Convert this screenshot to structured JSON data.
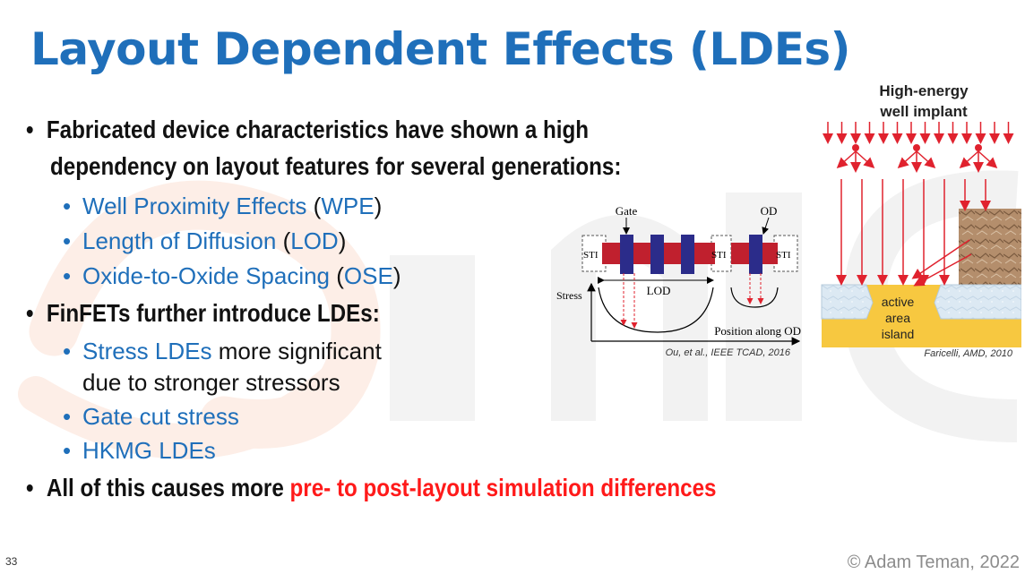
{
  "title": "Layout Dependent Effects (LDEs)",
  "bullets": {
    "b1_line1": "Fabricated device characteristics have shown a high",
    "b1_line2": "dependency on layout features for several generations:",
    "sub1": [
      {
        "text": "Well Proximity Effects",
        "open": " (",
        "abbr": "WPE",
        "close": ")"
      },
      {
        "text": "Length of Diffusion",
        "open": " (",
        "abbr": "LOD",
        "close": ")"
      },
      {
        "text": "Oxide-to-Oxide Spacing",
        "open": " (",
        "abbr": "OSE",
        "close": ")"
      }
    ],
    "b2": "FinFETs further introduce LDEs:",
    "sub2_a_blue": "Stress LDEs",
    "sub2_a_black": " more significant",
    "sub2_a_line2": "due to stronger stressors",
    "sub2_b": "Gate cut stress",
    "sub2_c": "HKMG LDEs",
    "b3_black": "All of this causes more ",
    "b3_red": "pre- to post-layout simulation differences"
  },
  "fig_lod": {
    "gate_label": "Gate",
    "od_label": "OD",
    "sti_label": "STI",
    "lod_label": "LOD",
    "stress_label": "Stress",
    "position_label": "Position along OD",
    "caption": "Ou, et al., IEEE TCAD, 2016"
  },
  "fig_wpe": {
    "title_line1": "High-energy",
    "title_line2": "well implant",
    "island_line1": "active",
    "island_line2": "area",
    "island_line3": "island",
    "caption": "Faricelli, AMD, 2010"
  },
  "colors": {
    "title_blue": "#1f6fba",
    "highlight_red": "#ff1a1a",
    "implant_red": "#e0222e",
    "od_red": "#c0202e",
    "gate_navy": "#2b2c8a",
    "substrate_yellow": "#f7c840"
  },
  "footer": {
    "page_number": "33",
    "copyright": "© Adam Teman, 2022"
  }
}
